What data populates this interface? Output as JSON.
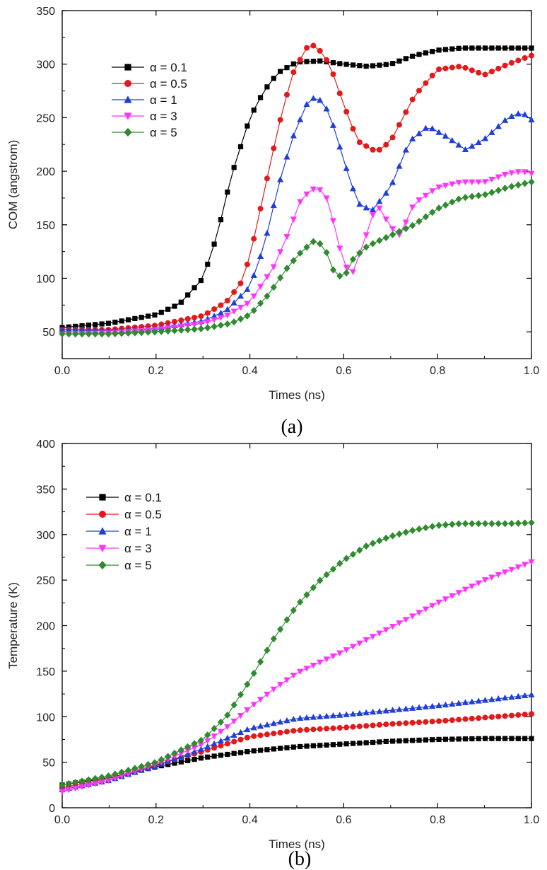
{
  "chart_data": [
    {
      "type": "line",
      "panel_label": "(a)",
      "xlabel": "Times (ns)",
      "ylabel": "COM (angstrom)",
      "xlim": [
        0.0,
        1.0
      ],
      "ylim": [
        25,
        350
      ],
      "xticks": [
        0.0,
        0.2,
        0.4,
        0.6,
        0.8,
        1.0
      ],
      "xtick_labels": [
        "0.0",
        "0.2",
        "0.4",
        "0.6",
        "0.8",
        "1.0"
      ],
      "yticks": [
        50,
        100,
        150,
        200,
        250,
        300,
        350
      ],
      "ytick_labels": [
        "50",
        "100",
        "150",
        "200",
        "250",
        "300",
        "350"
      ],
      "legend_position": "upper-left",
      "series": [
        {
          "name": "α = 0.1",
          "color": "#000000",
          "marker": "square",
          "x": [
            0.0,
            0.1,
            0.2,
            0.25,
            0.3,
            0.33,
            0.36,
            0.4,
            0.43,
            0.46,
            0.5,
            0.55,
            0.6,
            0.65,
            0.7,
            0.75,
            0.8,
            0.85,
            0.9,
            0.95,
            1.0
          ],
          "y": [
            54,
            58,
            66,
            76,
            100,
            140,
            195,
            250,
            275,
            292,
            302,
            303,
            300,
            298,
            300,
            308,
            313,
            315,
            315,
            315,
            315
          ]
        },
        {
          "name": "α = 0.5",
          "color": "#e31a1c",
          "marker": "circle",
          "x": [
            0.0,
            0.1,
            0.2,
            0.3,
            0.35,
            0.38,
            0.4,
            0.43,
            0.46,
            0.49,
            0.52,
            0.54,
            0.57,
            0.6,
            0.63,
            0.67,
            0.7,
            0.75,
            0.8,
            0.85,
            0.9,
            0.95,
            1.0
          ],
          "y": [
            52,
            52,
            56,
            65,
            78,
            95,
            120,
            180,
            240,
            290,
            315,
            318,
            300,
            262,
            228,
            218,
            228,
            270,
            295,
            298,
            290,
            300,
            308
          ]
        },
        {
          "name": "α = 1",
          "color": "#1f3fd6",
          "marker": "triangle-up",
          "x": [
            0.0,
            0.1,
            0.2,
            0.3,
            0.35,
            0.4,
            0.43,
            0.46,
            0.49,
            0.52,
            0.54,
            0.56,
            0.58,
            0.6,
            0.63,
            0.66,
            0.7,
            0.74,
            0.78,
            0.82,
            0.86,
            0.9,
            0.95,
            0.98,
            1.0
          ],
          "y": [
            52,
            51,
            53,
            60,
            70,
            92,
            130,
            185,
            230,
            262,
            270,
            262,
            240,
            210,
            170,
            163,
            185,
            228,
            242,
            232,
            220,
            230,
            250,
            255,
            248
          ]
        },
        {
          "name": "α = 3",
          "color": "#ff33ff",
          "marker": "triangle-down",
          "x": [
            0.0,
            0.1,
            0.2,
            0.3,
            0.35,
            0.4,
            0.45,
            0.48,
            0.51,
            0.54,
            0.56,
            0.58,
            0.6,
            0.62,
            0.64,
            0.67,
            0.7,
            0.72,
            0.75,
            0.8,
            0.85,
            0.9,
            0.95,
            0.98,
            1.0
          ],
          "y": [
            48,
            49,
            52,
            58,
            65,
            78,
            110,
            140,
            175,
            185,
            180,
            150,
            112,
            106,
            130,
            170,
            148,
            140,
            170,
            185,
            190,
            190,
            198,
            200,
            198
          ]
        },
        {
          "name": "α = 5",
          "color": "#2e8b2e",
          "marker": "diamond",
          "x": [
            0.0,
            0.1,
            0.2,
            0.3,
            0.36,
            0.4,
            0.44,
            0.48,
            0.51,
            0.54,
            0.56,
            0.58,
            0.6,
            0.62,
            0.65,
            0.7,
            0.75,
            0.8,
            0.85,
            0.9,
            0.95,
            1.0
          ],
          "y": [
            48,
            48,
            50,
            53,
            58,
            66,
            85,
            110,
            125,
            136,
            128,
            105,
            100,
            118,
            130,
            140,
            150,
            165,
            175,
            178,
            185,
            190
          ]
        }
      ]
    },
    {
      "type": "line",
      "panel_label": "(b)",
      "xlabel": "Times (ns)",
      "ylabel": "Temperature (K)",
      "xlim": [
        0.0,
        1.0
      ],
      "ylim": [
        0,
        400
      ],
      "xticks": [
        0.0,
        0.2,
        0.4,
        0.6,
        0.8,
        1.0
      ],
      "xtick_labels": [
        "0.0",
        "0.2",
        "0.4",
        "0.6",
        "0.8",
        "1.0"
      ],
      "yticks": [
        0,
        50,
        100,
        150,
        200,
        250,
        300,
        350,
        400
      ],
      "ytick_labels": [
        "0",
        "50",
        "100",
        "150",
        "200",
        "250",
        "300",
        "350",
        "400"
      ],
      "legend_position": "upper-left",
      "series": [
        {
          "name": "α = 0.1",
          "color": "#000000",
          "marker": "square",
          "x": [
            0.0,
            0.1,
            0.2,
            0.3,
            0.4,
            0.5,
            0.6,
            0.7,
            0.8,
            0.9,
            1.0
          ],
          "y": [
            25,
            33,
            45,
            55,
            62,
            67,
            70,
            73,
            75,
            76,
            76
          ]
        },
        {
          "name": "α = 0.5",
          "color": "#e31a1c",
          "marker": "circle",
          "x": [
            0.0,
            0.1,
            0.2,
            0.3,
            0.4,
            0.5,
            0.6,
            0.7,
            0.8,
            0.9,
            1.0
          ],
          "y": [
            22,
            32,
            47,
            62,
            78,
            85,
            88,
            92,
            95,
            99,
            103
          ]
        },
        {
          "name": "α = 1",
          "color": "#1f3fd6",
          "marker": "triangle-up",
          "x": [
            0.0,
            0.1,
            0.2,
            0.3,
            0.4,
            0.5,
            0.6,
            0.7,
            0.8,
            0.9,
            1.0
          ],
          "y": [
            20,
            30,
            46,
            65,
            87,
            98,
            102,
            107,
            112,
            118,
            124
          ]
        },
        {
          "name": "α = 3",
          "color": "#ff33ff",
          "marker": "triangle-down",
          "x": [
            0.0,
            0.1,
            0.2,
            0.3,
            0.35,
            0.4,
            0.45,
            0.5,
            0.6,
            0.7,
            0.8,
            0.9,
            1.0
          ],
          "y": [
            18,
            30,
            48,
            70,
            88,
            110,
            130,
            148,
            172,
            198,
            225,
            250,
            270
          ]
        },
        {
          "name": "α = 5",
          "color": "#2e8b2e",
          "marker": "diamond",
          "x": [
            0.0,
            0.1,
            0.2,
            0.3,
            0.35,
            0.4,
            0.45,
            0.5,
            0.55,
            0.6,
            0.65,
            0.7,
            0.75,
            0.8,
            0.85,
            0.9,
            0.95,
            1.0
          ],
          "y": [
            25,
            35,
            50,
            75,
            100,
            140,
            185,
            222,
            250,
            272,
            288,
            298,
            305,
            310,
            312,
            312,
            312,
            313
          ]
        }
      ]
    }
  ]
}
